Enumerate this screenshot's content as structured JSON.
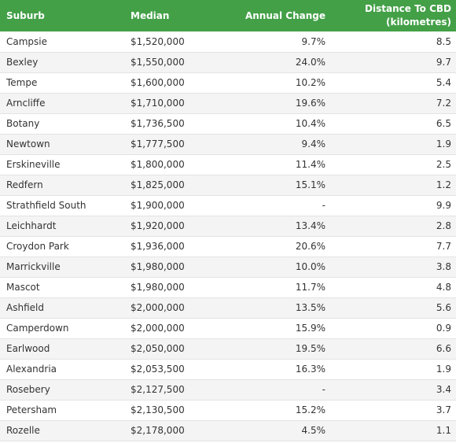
{
  "table": {
    "headers": {
      "suburb": "Suburb",
      "median": "Median",
      "annual_change": "Annual Change",
      "distance_line1": "Distance To CBD",
      "distance_line2": "(kilometres)"
    },
    "rows": [
      {
        "suburb": "Campsie",
        "median": "$1,520,000",
        "annual_change": "9.7%",
        "distance": "8.5"
      },
      {
        "suburb": "Bexley",
        "median": "$1,550,000",
        "annual_change": "24.0%",
        "distance": "9.7"
      },
      {
        "suburb": "Tempe",
        "median": "$1,600,000",
        "annual_change": "10.2%",
        "distance": "5.4"
      },
      {
        "suburb": "Arncliffe",
        "median": "$1,710,000",
        "annual_change": "19.6%",
        "distance": "7.2"
      },
      {
        "suburb": "Botany",
        "median": "$1,736,500",
        "annual_change": "10.4%",
        "distance": "6.5"
      },
      {
        "suburb": "Newtown",
        "median": "$1,777,500",
        "annual_change": "9.4%",
        "distance": "1.9"
      },
      {
        "suburb": "Erskineville",
        "median": "$1,800,000",
        "annual_change": "11.4%",
        "distance": "2.5"
      },
      {
        "suburb": "Redfern",
        "median": "$1,825,000",
        "annual_change": "15.1%",
        "distance": "1.2"
      },
      {
        "suburb": "Strathfield South",
        "median": "$1,900,000",
        "annual_change": "-",
        "distance": "9.9"
      },
      {
        "suburb": "Leichhardt",
        "median": "$1,920,000",
        "annual_change": "13.4%",
        "distance": "2.8"
      },
      {
        "suburb": "Croydon Park",
        "median": "$1,936,000",
        "annual_change": "20.6%",
        "distance": "7.7"
      },
      {
        "suburb": "Marrickville",
        "median": "$1,980,000",
        "annual_change": "10.0%",
        "distance": "3.8"
      },
      {
        "suburb": "Mascot",
        "median": "$1,980,000",
        "annual_change": "11.7%",
        "distance": "4.8"
      },
      {
        "suburb": "Ashfield",
        "median": "$2,000,000",
        "annual_change": "13.5%",
        "distance": "5.6"
      },
      {
        "suburb": "Camperdown",
        "median": "$2,000,000",
        "annual_change": "15.9%",
        "distance": "0.9"
      },
      {
        "suburb": "Earlwood",
        "median": "$2,050,000",
        "annual_change": "19.5%",
        "distance": "6.6"
      },
      {
        "suburb": "Alexandria",
        "median": "$2,053,500",
        "annual_change": "16.3%",
        "distance": "1.9"
      },
      {
        "suburb": "Rosebery",
        "median": "$2,127,500",
        "annual_change": "-",
        "distance": "3.4"
      },
      {
        "suburb": "Petersham",
        "median": "$2,130,500",
        "annual_change": "15.2%",
        "distance": "3.7"
      },
      {
        "suburb": "Rozelle",
        "median": "$2,178,000",
        "annual_change": "4.5%",
        "distance": "1.1"
      }
    ]
  },
  "colors": {
    "header_background": "#43a047",
    "header_text": "#ffffff",
    "row_alternate": "#f4f4f4",
    "body_text": "#333333"
  }
}
